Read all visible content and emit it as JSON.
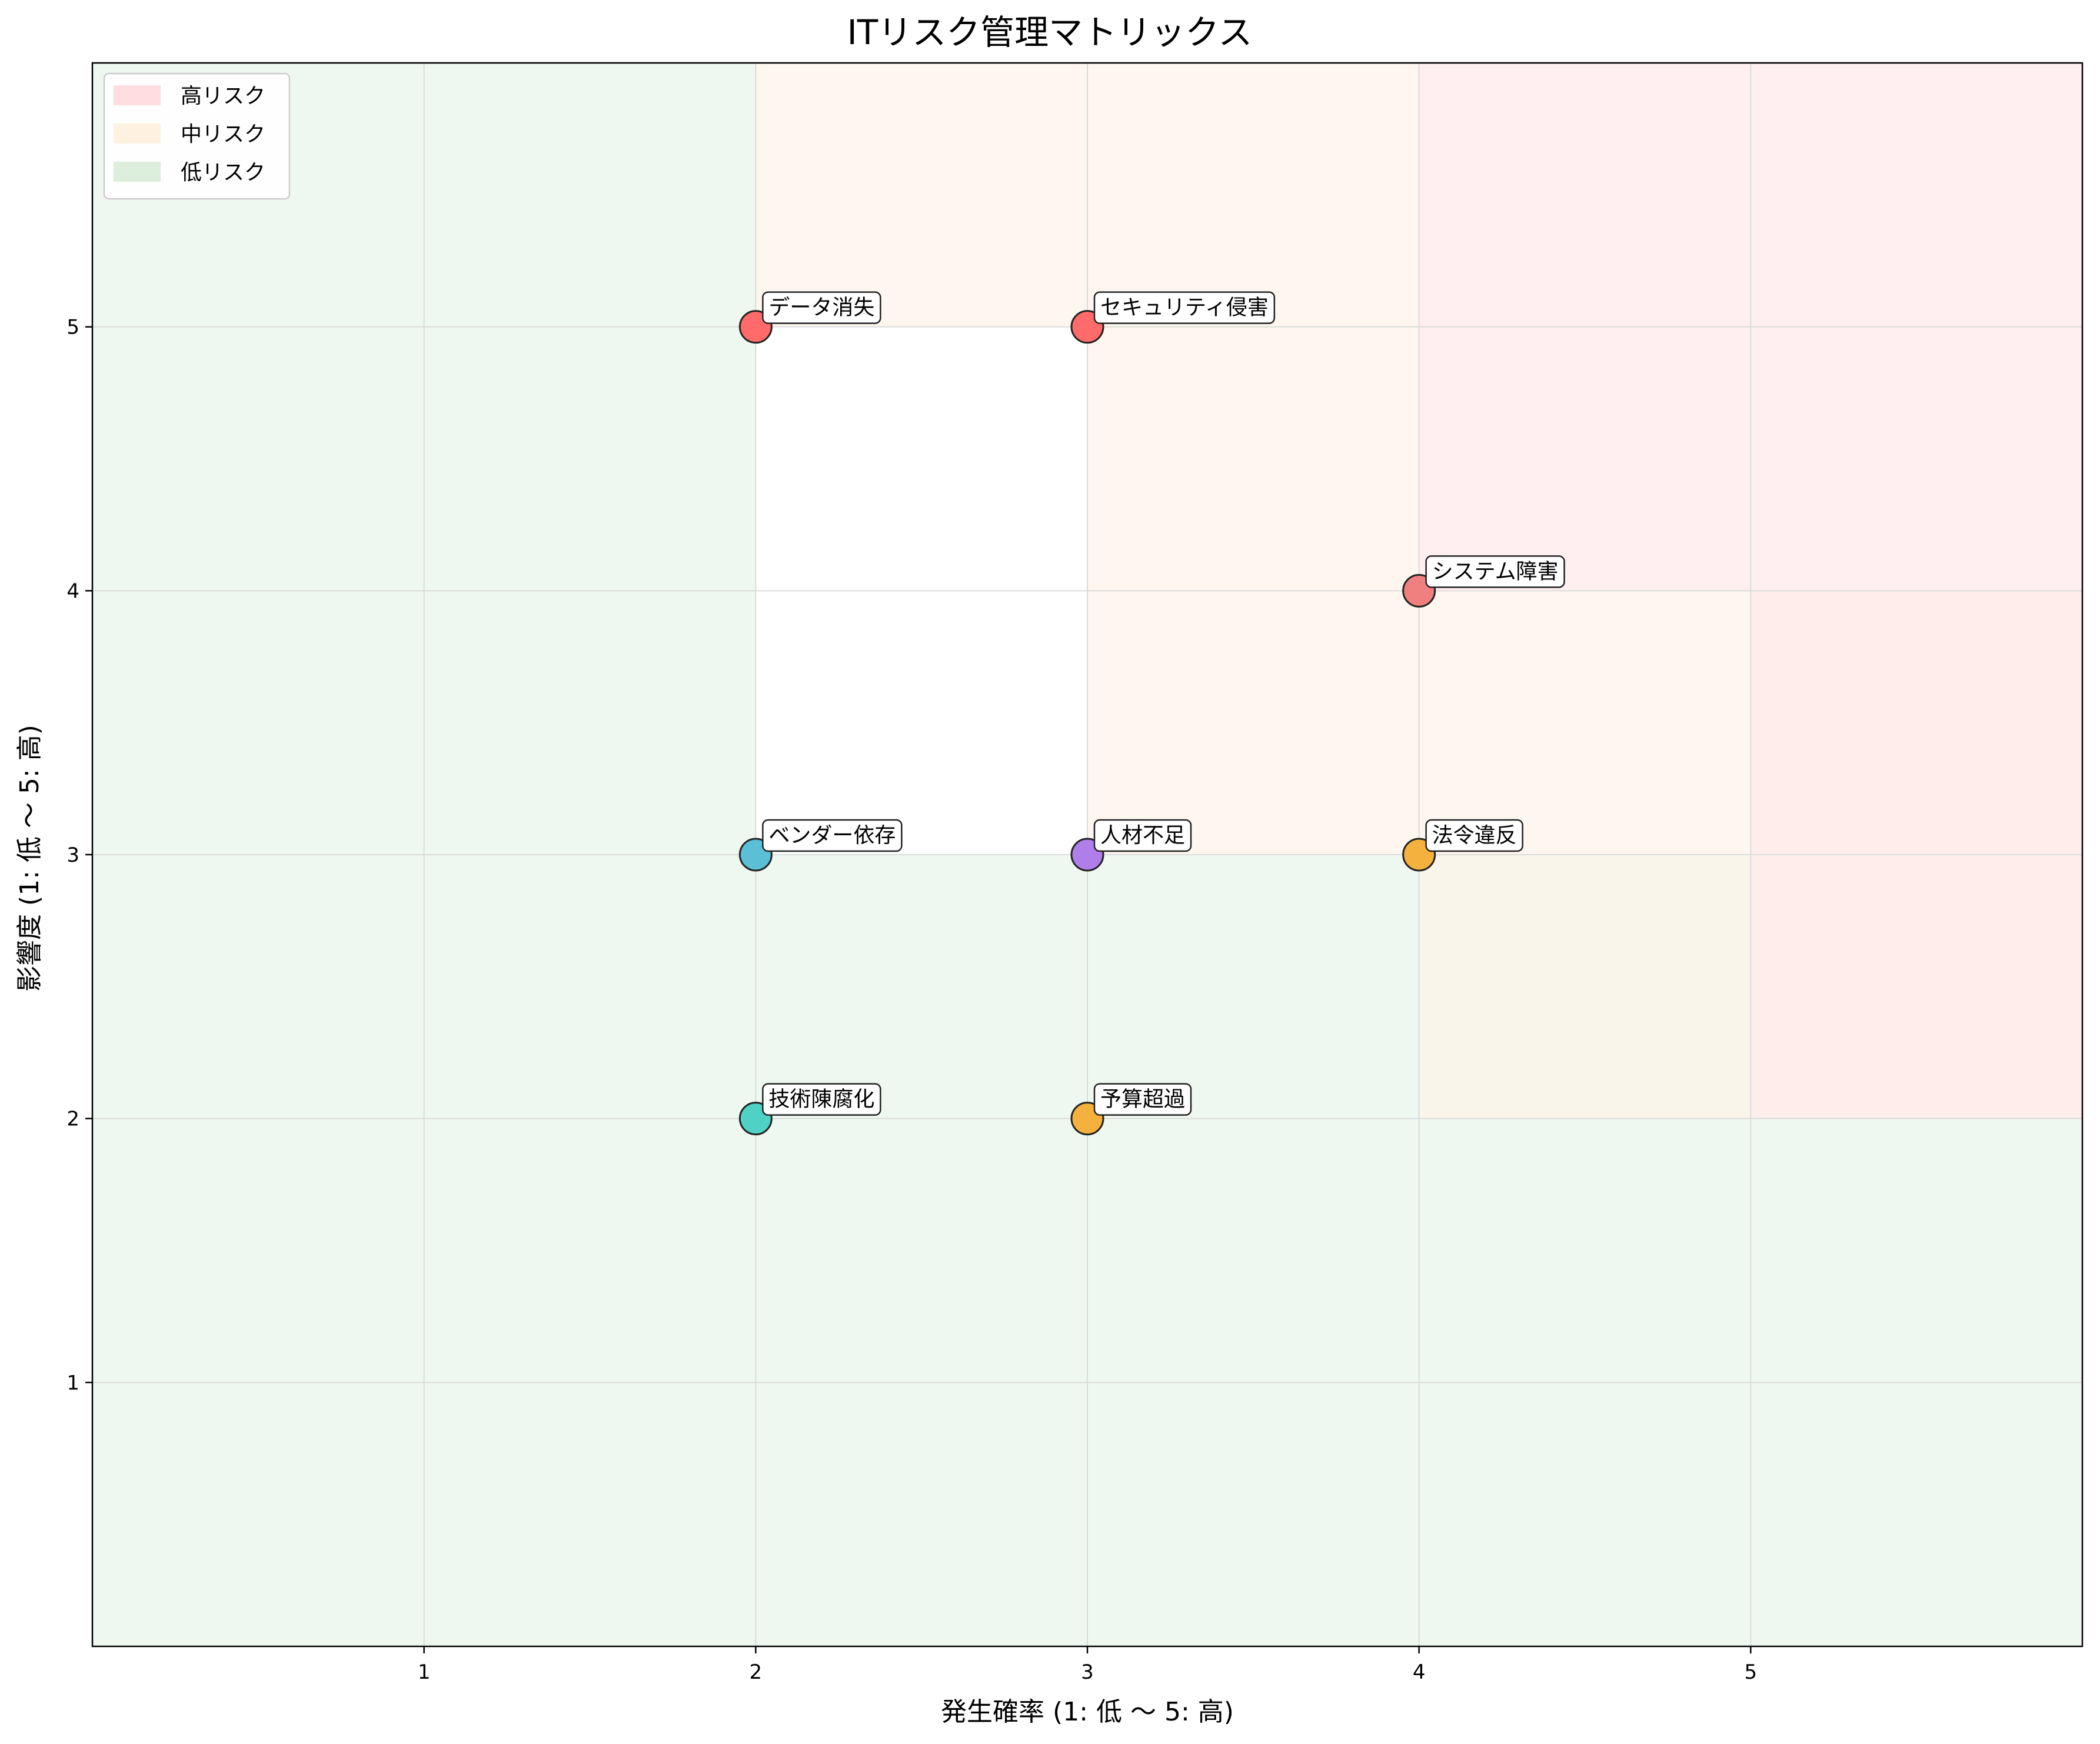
{
  "chart_data": {
    "type": "scatter",
    "title": "ITリスク管理マトリックス",
    "xlabel": "発生確率 (1: 低 ～ 5: 高)",
    "ylabel": "影響度 (1: 低 ～ 5: 高)",
    "xlim": [
      0,
      6
    ],
    "ylim": [
      0,
      6
    ],
    "xticks": [
      1,
      2,
      3,
      4,
      5
    ],
    "yticks": [
      1,
      2,
      3,
      4,
      5
    ],
    "grid": true,
    "legend_position": "top-left",
    "zones": [
      {
        "name": "低リスク",
        "color": "#e8f5e9",
        "rects": [
          [
            0,
            0,
            2,
            6
          ],
          [
            2,
            0,
            6,
            2
          ],
          [
            2,
            2,
            5,
            3
          ]
        ]
      },
      {
        "name": "中リスク",
        "color": "#fff4e8",
        "rects": [
          [
            2,
            5,
            4,
            6
          ],
          [
            3,
            3,
            4,
            5
          ],
          [
            4,
            2,
            5,
            4
          ],
          [
            5,
            2,
            6,
            4
          ]
        ]
      },
      {
        "name": "高リスク",
        "color": "#ffe8ea",
        "rects": [
          [
            4,
            4,
            6,
            6
          ],
          [
            5,
            2,
            6,
            4
          ]
        ]
      }
    ],
    "legend": [
      {
        "label": "高リスク",
        "color": "#ffdde0"
      },
      {
        "label": "中リスク",
        "color": "#fff1e0"
      },
      {
        "label": "低リスク",
        "color": "#dcefdc"
      }
    ],
    "points": [
      {
        "label": "データ消失",
        "x": 2,
        "y": 5,
        "color": "#ff6b6b"
      },
      {
        "label": "セキュリティ侵害",
        "x": 3,
        "y": 5,
        "color": "#ff6b6b"
      },
      {
        "label": "システム障害",
        "x": 4,
        "y": 4,
        "color": "#f08080"
      },
      {
        "label": "ベンダー依存",
        "x": 2,
        "y": 3,
        "color": "#5bc0d6"
      },
      {
        "label": "人材不足",
        "x": 3,
        "y": 3,
        "color": "#b07ee8"
      },
      {
        "label": "法令違反",
        "x": 4,
        "y": 3,
        "color": "#f5b13d"
      },
      {
        "label": "技術陳腐化",
        "x": 2,
        "y": 2,
        "color": "#4fd1c5"
      },
      {
        "label": "予算超過",
        "x": 3,
        "y": 2,
        "color": "#f5b13d"
      }
    ]
  }
}
